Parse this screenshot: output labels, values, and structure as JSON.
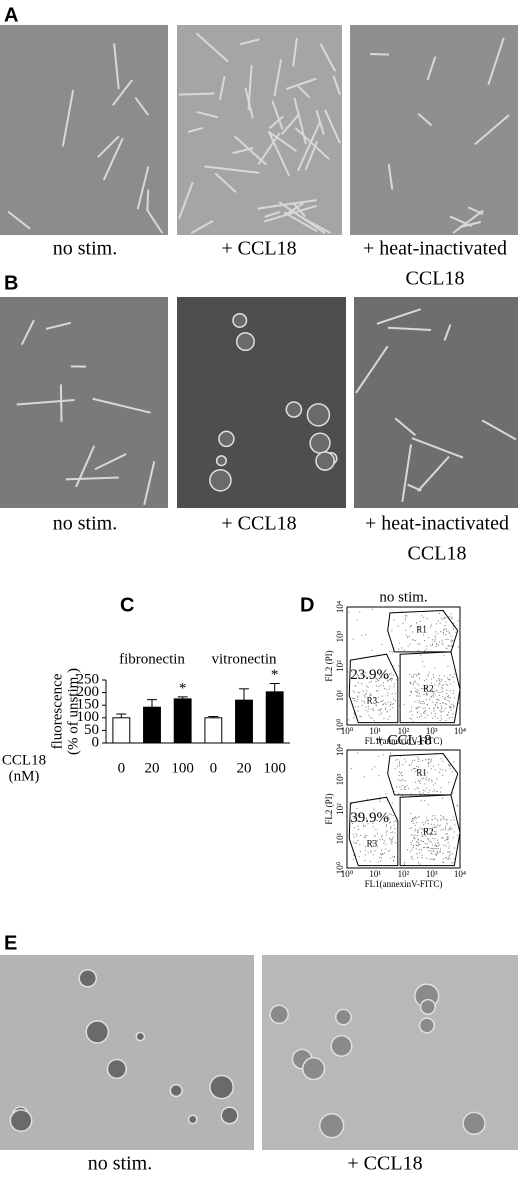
{
  "panel_a": {
    "label": "A",
    "captions": [
      [
        "no stim."
      ],
      [
        "+ CCL18"
      ],
      [
        "+ heat-inactivated",
        "CCL18"
      ]
    ]
  },
  "panel_b": {
    "label": "B",
    "captions": [
      [
        "no stim."
      ],
      [
        "+ CCL18"
      ],
      [
        "+ heat-inactivated",
        "CCL18"
      ]
    ]
  },
  "chart_data": {
    "type": "bar",
    "label": "C",
    "y_label": [
      "fluorescence",
      "(% of unstim.)"
    ],
    "x_label": [
      "CCL18",
      "(nM)"
    ],
    "groups": [
      "fibronectin",
      "vitronectin"
    ],
    "categories": [
      "0",
      "20",
      "100",
      "0",
      "20",
      "100"
    ],
    "values": [
      100,
      142,
      175,
      100,
      170,
      203
    ],
    "errors": [
      15,
      30,
      8,
      5,
      45,
      33
    ],
    "colors": [
      "#ffffff",
      "#000000",
      "#000000",
      "#ffffff",
      "#000000",
      "#000000"
    ],
    "ylim": [
      0,
      250
    ],
    "yticks": [
      0,
      50,
      100,
      150,
      200,
      250
    ],
    "annotations": [
      {
        "text": "*",
        "index": 2
      },
      {
        "text": "*",
        "index": 5
      }
    ]
  },
  "panel_d": {
    "label": "D",
    "x_label": "FL1(annexinV-FITC)",
    "y_label": "FL2 (PI)",
    "ticks": [
      "10⁰",
      "10¹",
      "10²",
      "10³",
      "10⁴"
    ],
    "plots": [
      {
        "title": "no stim.",
        "percent": "23.9%",
        "gates": [
          "R1",
          "R3",
          "R2"
        ]
      },
      {
        "title": "+ CCL18",
        "percent": "39.9%",
        "gates": [
          "R1",
          "R3",
          "R2"
        ]
      }
    ]
  },
  "panel_e": {
    "label": "E",
    "captions": [
      "no stim.",
      "+ CCL18"
    ]
  }
}
